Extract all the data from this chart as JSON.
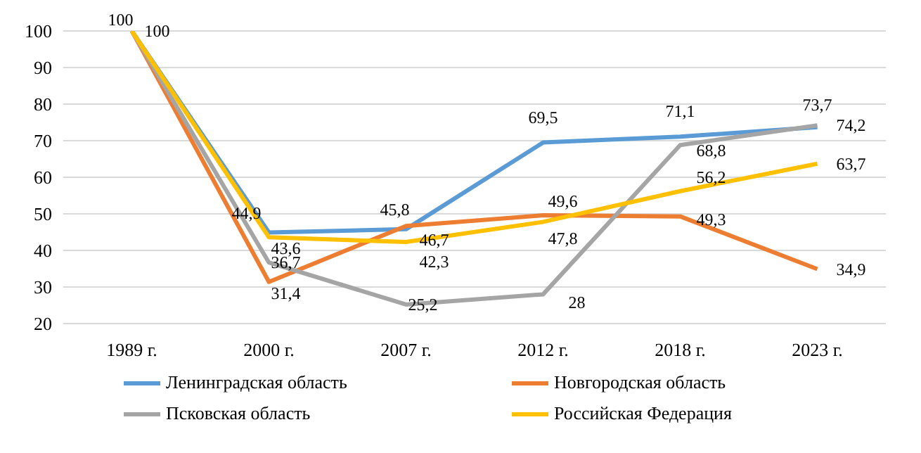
{
  "chart_data": {
    "type": "line",
    "categories": [
      "1989 г.",
      "2000 г.",
      "2007 г.",
      "2012 г.",
      "2018 г.",
      "2023 г."
    ],
    "series": [
      {
        "name": "Ленинградская область",
        "color": "#5b9bd5",
        "values": [
          100,
          44.9,
          45.8,
          69.5,
          71.1,
          73.7
        ],
        "value_labels": [
          "100",
          "44,9",
          "45,8",
          "69,5",
          "71,1",
          "73,7"
        ]
      },
      {
        "name": "Новгородская область",
        "color": "#ed7d31",
        "values": [
          100,
          31.4,
          46.7,
          49.6,
          49.3,
          34.9
        ],
        "value_labels": [
          null,
          "31,4",
          "46,7",
          "49,6",
          "49,3",
          "34,9"
        ]
      },
      {
        "name": "Псковская область",
        "color": "#a5a5a5",
        "values": [
          100,
          36.7,
          25.2,
          28,
          68.8,
          74.2
        ],
        "value_labels": [
          "100",
          "36,7",
          "25,2",
          "28",
          "68,8",
          "74,2"
        ]
      },
      {
        "name": "Российская Федерация",
        "color": "#ffc000",
        "values": [
          100,
          43.6,
          42.3,
          47.8,
          56.2,
          63.7
        ],
        "value_labels": [
          null,
          "43,6",
          "42,3",
          "47,8",
          "56,2",
          "63,7"
        ]
      }
    ],
    "ylim": [
      20,
      100
    ],
    "yticks": [
      20,
      30,
      40,
      50,
      60,
      70,
      80,
      90,
      100
    ],
    "grid": "y",
    "legend": "bottom",
    "marker": "none",
    "line_style": "solid"
  }
}
